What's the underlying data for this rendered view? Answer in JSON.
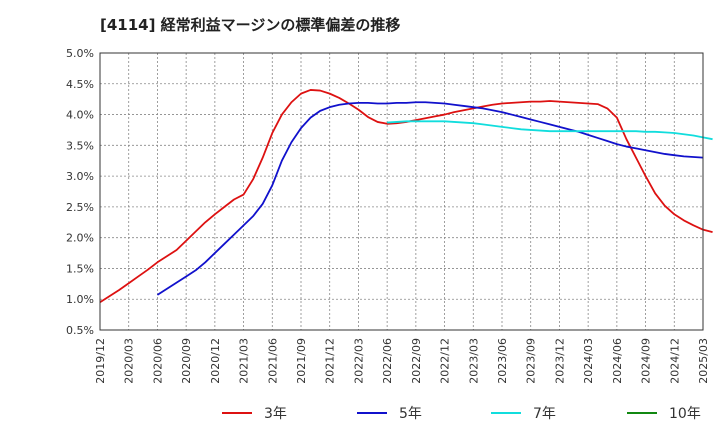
{
  "chart_data": {
    "type": "line",
    "title": "[4114]  経常利益マージンの標準偏差の推移",
    "xlabel": "",
    "ylabel": "",
    "ylim": [
      0.5,
      5.0
    ],
    "yticks": [
      "0.5%",
      "1.0%",
      "1.5%",
      "2.0%",
      "2.5%",
      "3.0%",
      "3.5%",
      "4.0%",
      "4.5%",
      "5.0%"
    ],
    "xticks": [
      "2019/12",
      "2020/03",
      "2020/06",
      "2020/09",
      "2020/12",
      "2021/03",
      "2021/06",
      "2021/09",
      "2021/12",
      "2022/03",
      "2022/06",
      "2022/09",
      "2022/12",
      "2023/03",
      "2023/06",
      "2023/09",
      "2023/12",
      "2024/03",
      "2024/06",
      "2024/09",
      "2024/12",
      "2025/03"
    ],
    "grid": true,
    "legend_position": "bottom",
    "series": [
      {
        "name": "3年",
        "color": "#dd1111",
        "points": [
          [
            "2019/12",
            0.95
          ],
          [
            "2020/01",
            1.05
          ],
          [
            "2020/02",
            1.15
          ],
          [
            "2020/03",
            1.26
          ],
          [
            "2020/04",
            1.37
          ],
          [
            "2020/05",
            1.48
          ],
          [
            "2020/06",
            1.6
          ],
          [
            "2020/07",
            1.7
          ],
          [
            "2020/08",
            1.8
          ],
          [
            "2020/09",
            1.95
          ],
          [
            "2020/10",
            2.1
          ],
          [
            "2020/11",
            2.25
          ],
          [
            "2020/12",
            2.38
          ],
          [
            "2021/01",
            2.5
          ],
          [
            "2021/02",
            2.62
          ],
          [
            "2021/03",
            2.7
          ],
          [
            "2021/04",
            2.95
          ],
          [
            "2021/05",
            3.3
          ],
          [
            "2021/06",
            3.7
          ],
          [
            "2021/07",
            4.0
          ],
          [
            "2021/08",
            4.2
          ],
          [
            "2021/09",
            4.34
          ],
          [
            "2021/10",
            4.4
          ],
          [
            "2021/11",
            4.39
          ],
          [
            "2021/12",
            4.34
          ],
          [
            "2022/01",
            4.27
          ],
          [
            "2022/02",
            4.18
          ],
          [
            "2022/03",
            4.08
          ],
          [
            "2022/04",
            3.96
          ],
          [
            "2022/05",
            3.88
          ],
          [
            "2022/06",
            3.85
          ],
          [
            "2022/07",
            3.86
          ],
          [
            "2022/08",
            3.88
          ],
          [
            "2022/09",
            3.91
          ],
          [
            "2022/10",
            3.94
          ],
          [
            "2022/11",
            3.97
          ],
          [
            "2022/12",
            4.0
          ],
          [
            "2023/01",
            4.04
          ],
          [
            "2023/02",
            4.07
          ],
          [
            "2023/03",
            4.1
          ],
          [
            "2023/04",
            4.13
          ],
          [
            "2023/05",
            4.16
          ],
          [
            "2023/06",
            4.18
          ],
          [
            "2023/07",
            4.19
          ],
          [
            "2023/08",
            4.2
          ],
          [
            "2023/09",
            4.21
          ],
          [
            "2023/10",
            4.21
          ],
          [
            "2023/11",
            4.22
          ],
          [
            "2023/12",
            4.21
          ],
          [
            "2024/01",
            4.2
          ],
          [
            "2024/02",
            4.19
          ],
          [
            "2024/03",
            4.18
          ],
          [
            "2024/04",
            4.17
          ],
          [
            "2024/05",
            4.1
          ],
          [
            "2024/06",
            3.95
          ],
          [
            "2024/07",
            3.6
          ],
          [
            "2024/08",
            3.3
          ],
          [
            "2024/09",
            3.0
          ],
          [
            "2024/10",
            2.72
          ],
          [
            "2024/11",
            2.52
          ],
          [
            "2024/12",
            2.38
          ],
          [
            "2025/01",
            2.28
          ],
          [
            "2025/02",
            2.2
          ],
          [
            "2025/03",
            2.13
          ],
          [
            "2025/04",
            2.09
          ]
        ]
      },
      {
        "name": "5年",
        "color": "#1111cc",
        "points": [
          [
            "2020/06",
            1.07
          ],
          [
            "2020/07",
            1.17
          ],
          [
            "2020/08",
            1.27
          ],
          [
            "2020/09",
            1.37
          ],
          [
            "2020/10",
            1.47
          ],
          [
            "2020/11",
            1.6
          ],
          [
            "2020/12",
            1.75
          ],
          [
            "2021/01",
            1.9
          ],
          [
            "2021/02",
            2.05
          ],
          [
            "2021/03",
            2.2
          ],
          [
            "2021/04",
            2.35
          ],
          [
            "2021/05",
            2.55
          ],
          [
            "2021/06",
            2.85
          ],
          [
            "2021/07",
            3.25
          ],
          [
            "2021/08",
            3.55
          ],
          [
            "2021/09",
            3.78
          ],
          [
            "2021/10",
            3.95
          ],
          [
            "2021/11",
            4.06
          ],
          [
            "2021/12",
            4.12
          ],
          [
            "2022/01",
            4.16
          ],
          [
            "2022/02",
            4.18
          ],
          [
            "2022/03",
            4.19
          ],
          [
            "2022/04",
            4.19
          ],
          [
            "2022/05",
            4.18
          ],
          [
            "2022/06",
            4.18
          ],
          [
            "2022/07",
            4.19
          ],
          [
            "2022/08",
            4.19
          ],
          [
            "2022/09",
            4.2
          ],
          [
            "2022/10",
            4.2
          ],
          [
            "2022/11",
            4.19
          ],
          [
            "2022/12",
            4.18
          ],
          [
            "2023/01",
            4.16
          ],
          [
            "2023/02",
            4.14
          ],
          [
            "2023/03",
            4.12
          ],
          [
            "2023/04",
            4.1
          ],
          [
            "2023/05",
            4.07
          ],
          [
            "2023/06",
            4.04
          ],
          [
            "2023/07",
            4.0
          ],
          [
            "2023/08",
            3.96
          ],
          [
            "2023/09",
            3.92
          ],
          [
            "2023/10",
            3.88
          ],
          [
            "2023/11",
            3.84
          ],
          [
            "2023/12",
            3.8
          ],
          [
            "2024/01",
            3.76
          ],
          [
            "2024/02",
            3.72
          ],
          [
            "2024/03",
            3.67
          ],
          [
            "2024/04",
            3.62
          ],
          [
            "2024/05",
            3.57
          ],
          [
            "2024/06",
            3.52
          ],
          [
            "2024/07",
            3.48
          ],
          [
            "2024/08",
            3.45
          ],
          [
            "2024/09",
            3.42
          ],
          [
            "2024/10",
            3.39
          ],
          [
            "2024/11",
            3.36
          ],
          [
            "2024/12",
            3.34
          ],
          [
            "2025/01",
            3.32
          ],
          [
            "2025/02",
            3.31
          ],
          [
            "2025/03",
            3.3
          ]
        ]
      },
      {
        "name": "7年",
        "color": "#11dddd",
        "points": [
          [
            "2022/06",
            3.87
          ],
          [
            "2022/07",
            3.88
          ],
          [
            "2022/08",
            3.89
          ],
          [
            "2022/09",
            3.89
          ],
          [
            "2022/10",
            3.89
          ],
          [
            "2022/11",
            3.89
          ],
          [
            "2022/12",
            3.89
          ],
          [
            "2023/01",
            3.88
          ],
          [
            "2023/02",
            3.87
          ],
          [
            "2023/03",
            3.86
          ],
          [
            "2023/04",
            3.84
          ],
          [
            "2023/05",
            3.82
          ],
          [
            "2023/06",
            3.8
          ],
          [
            "2023/07",
            3.78
          ],
          [
            "2023/08",
            3.76
          ],
          [
            "2023/09",
            3.75
          ],
          [
            "2023/10",
            3.74
          ],
          [
            "2023/11",
            3.73
          ],
          [
            "2023/12",
            3.73
          ],
          [
            "2024/01",
            3.73
          ],
          [
            "2024/02",
            3.73
          ],
          [
            "2024/03",
            3.73
          ],
          [
            "2024/04",
            3.73
          ],
          [
            "2024/05",
            3.73
          ],
          [
            "2024/06",
            3.73
          ],
          [
            "2024/07",
            3.73
          ],
          [
            "2024/08",
            3.73
          ],
          [
            "2024/09",
            3.72
          ],
          [
            "2024/10",
            3.72
          ],
          [
            "2024/11",
            3.71
          ],
          [
            "2024/12",
            3.7
          ],
          [
            "2025/01",
            3.68
          ],
          [
            "2025/02",
            3.66
          ],
          [
            "2025/03",
            3.63
          ],
          [
            "2025/04",
            3.6
          ]
        ]
      },
      {
        "name": "10年",
        "color": "#118811",
        "points": []
      }
    ]
  }
}
